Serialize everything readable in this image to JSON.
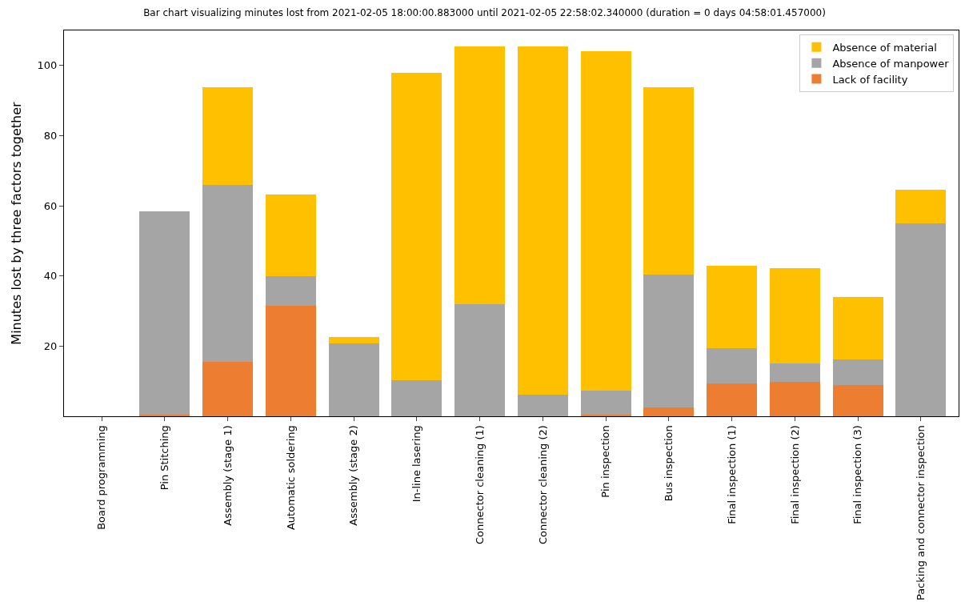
{
  "chart_data": {
    "type": "bar",
    "stacked": true,
    "title": "Bar chart visualizing minutes lost from 2021-02-05 18:00:00.883000 until 2021-02-05 22:58:02.340000 (duration = 0 days 04:58:01.457000)",
    "ylabel": "Minutes lost by three factors together",
    "categories": [
      "Board programming",
      "Pin Stitching",
      "Assembly (stage 1)",
      "Automatic soldering",
      "Assembly (stage 2)",
      "In-line lasering",
      "Connector cleaning (1)",
      "Connector cleaning (2)",
      "Pin inspection",
      "Bus inspection",
      "Final inspection (1)",
      "Final inspection (2)",
      "Final inspection (3)",
      "Packing and connector inspection"
    ],
    "series": [
      {
        "name": "Lack of facility",
        "color": "#ed7d31",
        "values": [
          0,
          0.5,
          15.6,
          31.5,
          0,
          0,
          0,
          0,
          0.5,
          2.4,
          9.3,
          9.8,
          8.8,
          0
        ]
      },
      {
        "name": "Absence of manpower",
        "color": "#a5a5a5",
        "values": [
          0,
          58,
          50.3,
          8.5,
          20.7,
          10.2,
          32,
          6.1,
          6.8,
          38.1,
          10.2,
          5.3,
          7.5,
          54.9
        ]
      },
      {
        "name": "Absence of material",
        "color": "#ffc000",
        "values": [
          0,
          0,
          27.8,
          23.2,
          2,
          87.6,
          73.4,
          99.3,
          96.8,
          53.4,
          23.4,
          27.1,
          17.8,
          9.7
        ]
      }
    ],
    "ylim": [
      0,
      110
    ],
    "yticks": [
      20,
      40,
      60,
      80,
      100
    ],
    "legend": "top right"
  }
}
